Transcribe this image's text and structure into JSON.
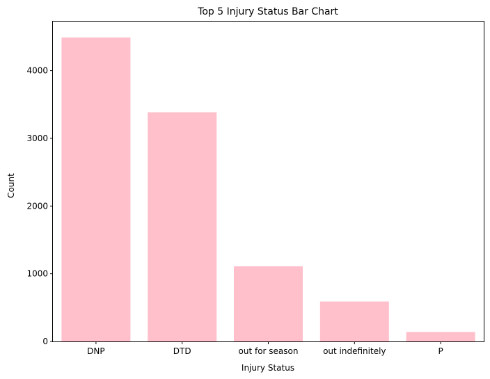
{
  "chart_data": {
    "type": "bar",
    "title": "Top 5 Injury Status Bar Chart",
    "xlabel": "Injury Status",
    "ylabel": "Count",
    "categories": [
      "DNP",
      "DTD",
      "out for season",
      "out indefinitely",
      "P"
    ],
    "values": [
      4490,
      3385,
      1110,
      590,
      140
    ],
    "ylim": [
      0,
      4725
    ],
    "yticks": [
      0,
      1000,
      2000,
      3000,
      4000
    ],
    "bar_color": "#ffc0cb",
    "grid": false,
    "legend": "none"
  }
}
